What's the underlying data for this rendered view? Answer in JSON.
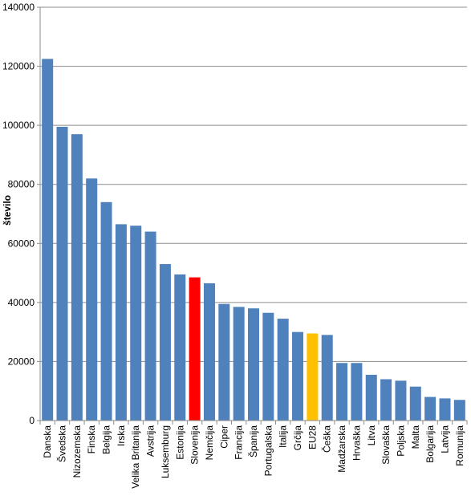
{
  "chart_data": {
    "type": "bar",
    "title": "",
    "xlabel": "",
    "ylabel": "število",
    "ylim": [
      0,
      140000
    ],
    "yticks": [
      0,
      20000,
      40000,
      60000,
      80000,
      100000,
      120000,
      140000
    ],
    "ytick_labels": [
      "0",
      "20000",
      "40000",
      "60000",
      "80000",
      "100000",
      "120000",
      "140000"
    ],
    "grid": true,
    "legend": "none",
    "categories": [
      "Danska",
      "Švedska",
      "Nizozemska",
      "Finska",
      "Belgija",
      "Irska",
      "Velika Britanija",
      "Avstrija",
      "Luksemburg",
      "Estonija",
      "Slovenija",
      "Nemčija",
      "Ciper",
      "Francija",
      "Španija",
      "Portugalska",
      "Italija",
      "Grčija",
      "EU28",
      "Češka",
      "Madžarska",
      "Hrvaška",
      "Litva",
      "Slovaška",
      "Poljska",
      "Malta",
      "Bolgarija",
      "Latvija",
      "Romunija"
    ],
    "values": [
      122500,
      99500,
      97000,
      82000,
      74000,
      66500,
      66000,
      64000,
      53000,
      49500,
      48500,
      46500,
      39500,
      38500,
      38000,
      36500,
      34500,
      30000,
      29500,
      29000,
      19500,
      19500,
      15500,
      14000,
      13500,
      11500,
      8000,
      7500,
      7000
    ],
    "colors": {
      "default": "#4f81bd",
      "Slovenija": "#ff0000",
      "EU28": "#ffc000"
    }
  }
}
